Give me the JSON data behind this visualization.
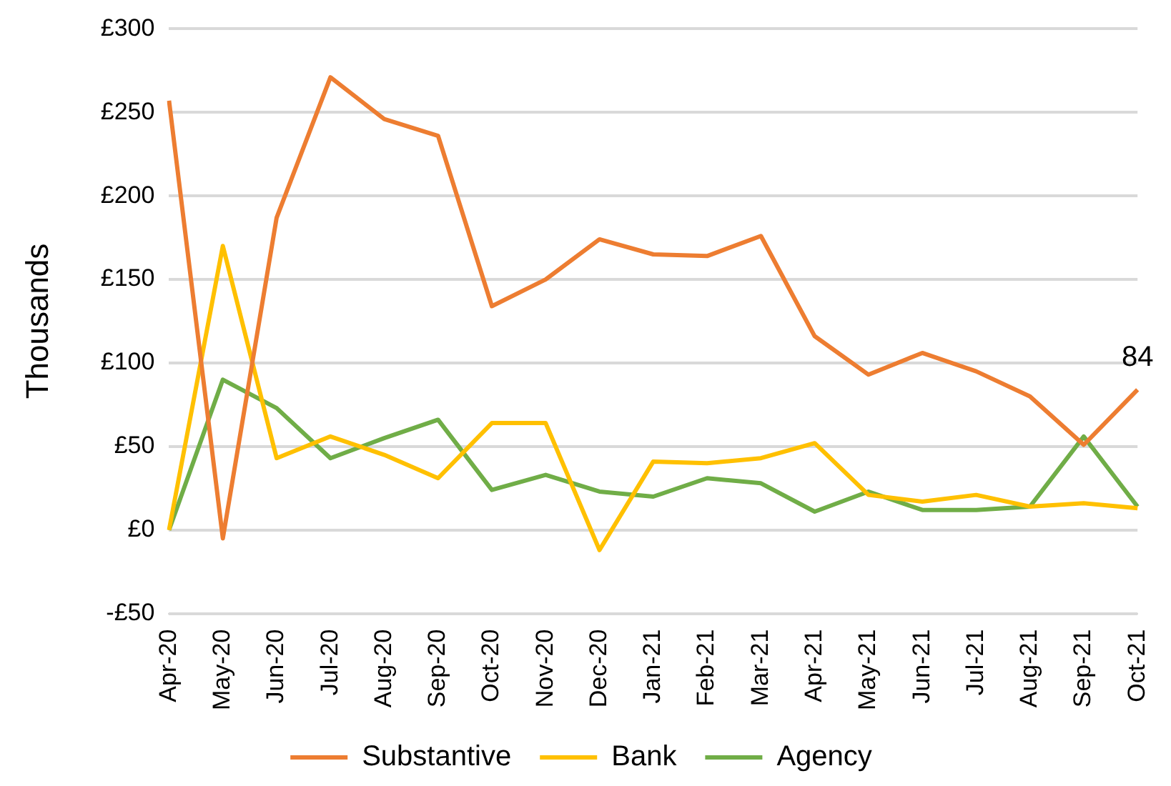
{
  "chart_data": {
    "type": "line",
    "ylabel": "Thousands",
    "categories": [
      "Apr-20",
      "May-20",
      "Jun-20",
      "Jul-20",
      "Aug-20",
      "Sep-20",
      "Oct-20",
      "Nov-20",
      "Dec-20",
      "Jan-21",
      "Feb-21",
      "Mar-21",
      "Apr-21",
      "May-21",
      "Jun-21",
      "Jul-21",
      "Aug-21",
      "Sep-21",
      "Oct-21"
    ],
    "series": [
      {
        "name": "Substantive",
        "color": "#ed7d31",
        "values": [
          257,
          -5,
          187,
          271,
          246,
          236,
          134,
          150,
          174,
          165,
          164,
          176,
          116,
          93,
          106,
          95,
          80,
          51,
          84
        ],
        "value_labels": [
          null,
          null,
          null,
          null,
          null,
          null,
          null,
          null,
          null,
          null,
          null,
          null,
          null,
          null,
          null,
          null,
          null,
          null,
          "84"
        ]
      },
      {
        "name": "Bank",
        "color": "#ffc000",
        "values": [
          0,
          170,
          43,
          56,
          45,
          31,
          64,
          64,
          -12,
          41,
          40,
          43,
          52,
          21,
          17,
          21,
          14,
          16,
          13
        ]
      },
      {
        "name": "Agency",
        "color": "#70ad47",
        "values": [
          0,
          90,
          73,
          43,
          55,
          66,
          24,
          33,
          23,
          20,
          31,
          28,
          11,
          23,
          12,
          12,
          14,
          56,
          14
        ]
      }
    ],
    "ylim": [
      -50,
      300
    ],
    "yticks": [
      {
        "value": -50,
        "label": "-£50"
      },
      {
        "value": 0,
        "label": "£0"
      },
      {
        "value": 50,
        "label": "£50"
      },
      {
        "value": 100,
        "label": "£100"
      },
      {
        "value": 150,
        "label": "£150"
      },
      {
        "value": 200,
        "label": "£200"
      },
      {
        "value": 250,
        "label": "£250"
      },
      {
        "value": 300,
        "label": "£300"
      }
    ],
    "grid": "y",
    "legend": "bottom",
    "marker": "none",
    "line_style": "solid"
  }
}
